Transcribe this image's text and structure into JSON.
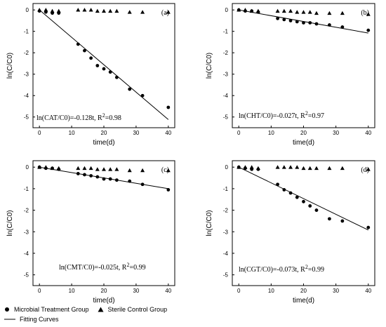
{
  "chart_data": [
    {
      "type": "scatter",
      "panel_label": "(a)",
      "xlabel": "time(d)",
      "ylabel": "ln(C/C0)",
      "xlim": [
        -2,
        42
      ],
      "ylim": [
        -5.5,
        0.3
      ],
      "xticks": [
        "0",
        "10",
        "20",
        "30",
        "40"
      ],
      "yticks": [
        "0",
        "-1",
        "-2",
        "-3",
        "-4",
        "-5"
      ],
      "equation": {
        "lhs": "ln(C",
        "sub": "AT",
        "mid": "/C0)=-0.128t,   R",
        "sup": "2",
        "end": "=0.98"
      },
      "series": [
        {
          "name": "Microbial Treatment Group",
          "marker": "circle",
          "x": [
            0,
            2,
            4,
            6,
            12,
            14,
            16,
            18,
            20,
            22,
            24,
            28,
            32,
            40
          ],
          "y": [
            -0.05,
            -0.1,
            -0.15,
            -0.15,
            -1.6,
            -1.9,
            -2.25,
            -2.6,
            -2.75,
            -2.9,
            -3.15,
            -3.7,
            -4.0,
            -4.55
          ]
        },
        {
          "name": "Sterile Control Group",
          "marker": "triangle",
          "x": [
            0,
            2,
            4,
            6,
            12,
            14,
            16,
            18,
            20,
            22,
            24,
            28,
            32,
            40
          ],
          "y": [
            0,
            0,
            -0.05,
            -0.05,
            0,
            0,
            0,
            -0.05,
            -0.05,
            -0.05,
            -0.05,
            -0.1,
            -0.1,
            -0.1
          ]
        },
        {
          "name": "Fitting Curves",
          "type": "line",
          "x": [
            0,
            40
          ],
          "y": [
            0,
            -5.12
          ]
        }
      ]
    },
    {
      "type": "scatter",
      "panel_label": "(b)",
      "xlabel": "time(d)",
      "ylabel": "ln(C/C0)",
      "xlim": [
        -2,
        42
      ],
      "ylim": [
        -5.5,
        0.3
      ],
      "xticks": [
        "0",
        "10",
        "20",
        "30",
        "40"
      ],
      "yticks": [
        "0",
        "-1",
        "-2",
        "-3",
        "-4",
        "-5"
      ],
      "equation": {
        "lhs": "ln(C",
        "sub": "HT",
        "mid": "/C0)=-0.027t,   R",
        "sup": "2",
        "end": "=0.97"
      },
      "series": [
        {
          "name": "Microbial Treatment Group",
          "marker": "circle",
          "x": [
            0,
            2,
            4,
            6,
            12,
            14,
            16,
            18,
            20,
            22,
            24,
            28,
            32,
            40
          ],
          "y": [
            0,
            -0.05,
            -0.05,
            -0.1,
            -0.4,
            -0.45,
            -0.5,
            -0.55,
            -0.6,
            -0.6,
            -0.65,
            -0.7,
            -0.8,
            -0.95
          ]
        },
        {
          "name": "Sterile Control Group",
          "marker": "triangle",
          "x": [
            0,
            2,
            4,
            6,
            12,
            14,
            16,
            18,
            20,
            22,
            24,
            28,
            32,
            40
          ],
          "y": [
            0,
            0,
            -0.05,
            -0.05,
            -0.05,
            -0.05,
            -0.05,
            -0.1,
            -0.1,
            -0.1,
            -0.15,
            -0.15,
            -0.15,
            -0.2
          ]
        },
        {
          "name": "Fitting Curves",
          "type": "line",
          "x": [
            0,
            40
          ],
          "y": [
            0,
            -1.08
          ]
        }
      ]
    },
    {
      "type": "scatter",
      "panel_label": "(c)",
      "xlabel": "time(d)",
      "ylabel": "ln(C/C0)",
      "xlim": [
        -2,
        42
      ],
      "ylim": [
        -5.5,
        0.3
      ],
      "xticks": [
        "0",
        "10",
        "20",
        "30",
        "40"
      ],
      "yticks": [
        "0",
        "-1",
        "-2",
        "-3",
        "-4",
        "-5"
      ],
      "equation": {
        "lhs": "ln(C",
        "sub": "MT",
        "mid": "/C0)=-0.025t,   R",
        "sup": "2",
        "end": "=0.99"
      },
      "series": [
        {
          "name": "Microbial Treatment Group",
          "marker": "circle",
          "x": [
            0,
            2,
            4,
            6,
            12,
            14,
            16,
            18,
            20,
            22,
            24,
            28,
            32,
            40
          ],
          "y": [
            0,
            -0.05,
            -0.05,
            -0.1,
            -0.3,
            -0.35,
            -0.4,
            -0.45,
            -0.55,
            -0.55,
            -0.6,
            -0.65,
            -0.8,
            -1.05
          ]
        },
        {
          "name": "Sterile Control Group",
          "marker": "triangle",
          "x": [
            0,
            2,
            4,
            6,
            12,
            14,
            16,
            18,
            20,
            22,
            24,
            28,
            32,
            40
          ],
          "y": [
            0,
            0,
            -0.05,
            -0.05,
            -0.05,
            -0.05,
            -0.05,
            -0.1,
            -0.1,
            -0.1,
            -0.1,
            -0.15,
            -0.15,
            -0.15
          ]
        },
        {
          "name": "Fitting Curves",
          "type": "line",
          "x": [
            0,
            40
          ],
          "y": [
            0,
            -1.0
          ]
        }
      ]
    },
    {
      "type": "scatter",
      "panel_label": "(d)",
      "xlabel": "time(d)",
      "ylabel": "ln(C/C0)",
      "xlim": [
        -2,
        42
      ],
      "ylim": [
        -5.5,
        0.3
      ],
      "xticks": [
        "0",
        "10",
        "20",
        "30",
        "40"
      ],
      "yticks": [
        "0",
        "-1",
        "-2",
        "-3",
        "-4",
        "-5"
      ],
      "equation": {
        "lhs": "ln(C",
        "sub": "GT",
        "mid": "/C0)=-0.073t,   R",
        "sup": "2",
        "end": "=0.99"
      },
      "series": [
        {
          "name": "Microbial Treatment Group",
          "marker": "circle",
          "x": [
            0,
            2,
            4,
            6,
            12,
            14,
            16,
            18,
            20,
            22,
            24,
            28,
            32,
            40
          ],
          "y": [
            0,
            -0.05,
            -0.1,
            -0.1,
            -0.8,
            -1.05,
            -1.2,
            -1.4,
            -1.6,
            -1.8,
            -2.0,
            -2.4,
            -2.5,
            -2.8
          ]
        },
        {
          "name": "Sterile Control Group",
          "marker": "triangle",
          "x": [
            0,
            2,
            4,
            6,
            12,
            14,
            16,
            18,
            20,
            22,
            24,
            28,
            32,
            40
          ],
          "y": [
            0,
            0,
            0,
            -0.05,
            0,
            0,
            0,
            0,
            -0.05,
            -0.05,
            -0.05,
            -0.05,
            -0.05,
            -0.1
          ]
        },
        {
          "name": "Fitting Curves",
          "type": "line",
          "x": [
            0,
            40
          ],
          "y": [
            0,
            -2.92
          ]
        }
      ]
    }
  ],
  "legend": {
    "items": [
      {
        "marker": "circle",
        "label": "Microbial Treatment Group"
      },
      {
        "marker": "triangle",
        "label": "Sterile Control Group"
      },
      {
        "marker": "line",
        "label": "Fitting Curves"
      }
    ]
  }
}
